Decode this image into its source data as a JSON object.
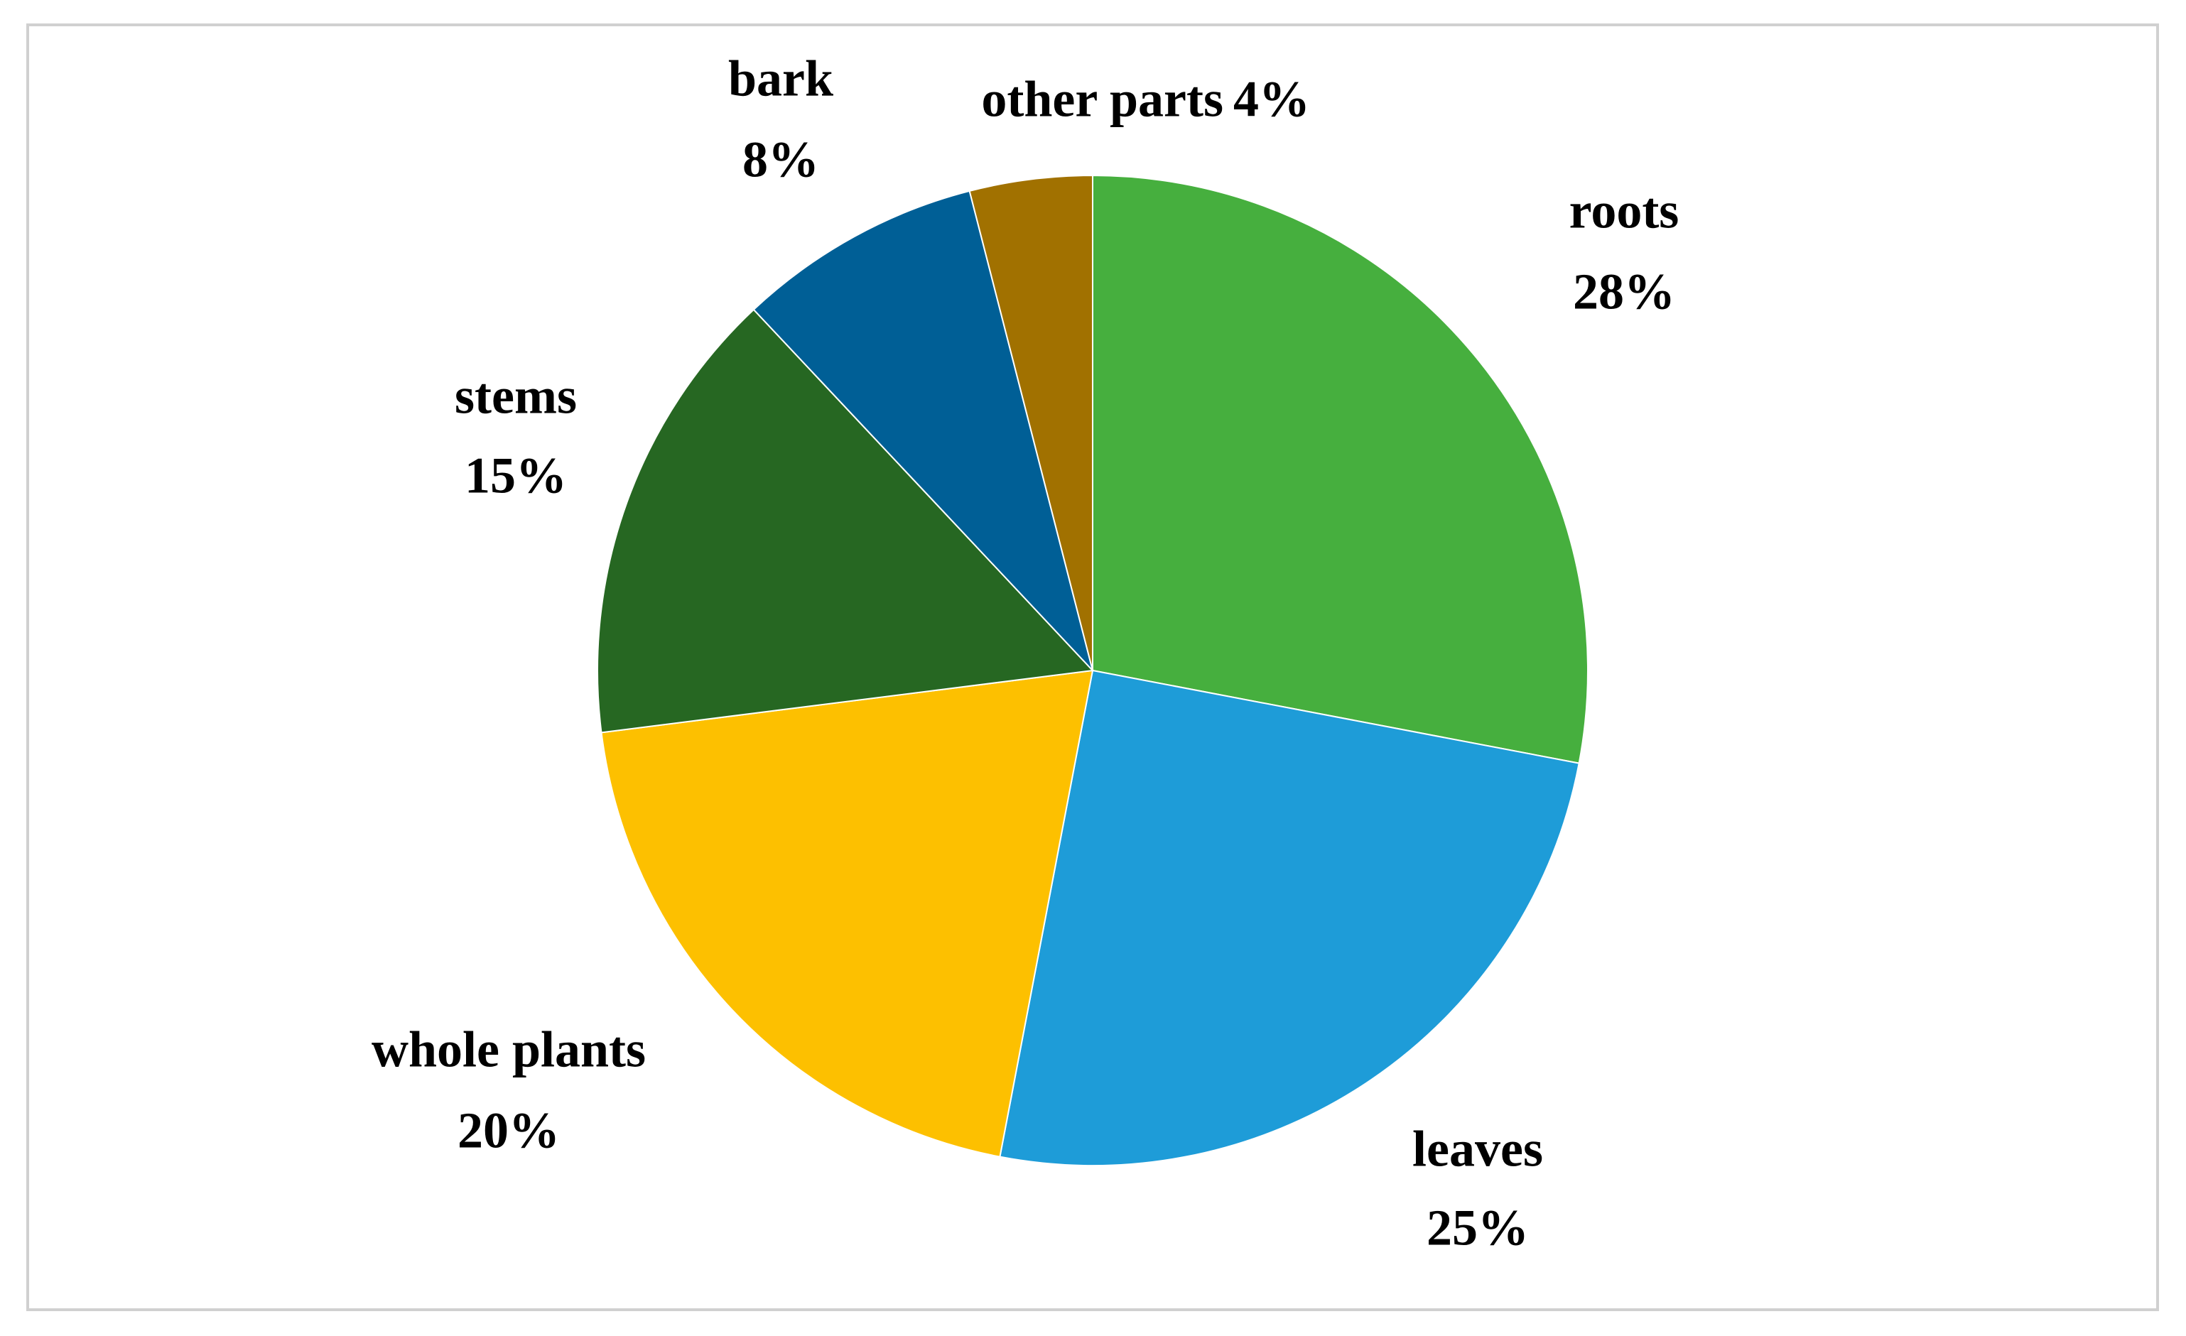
{
  "chart_data": {
    "type": "pie",
    "categories": [
      "roots",
      "leaves",
      "whole plants",
      "stems",
      "bark",
      "other parts"
    ],
    "values": [
      28,
      25,
      20,
      15,
      8,
      4
    ],
    "value_labels": [
      "28%",
      "25%",
      "20%",
      "15%",
      "8%",
      "4%"
    ],
    "colors": [
      "#46af3e",
      "#1e9cd8",
      "#fdc000",
      "#266722",
      "#005f96",
      "#a17100"
    ]
  }
}
